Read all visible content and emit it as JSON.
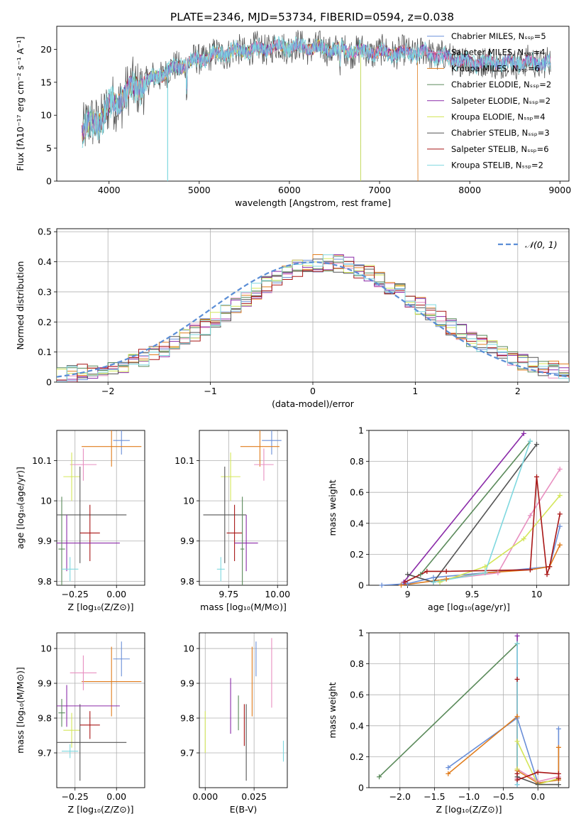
{
  "title": "PLATE=2346, MJD=53734, FIBERID=0594, z=0.038",
  "colors": {
    "chabrier_miles": "#6a8fd8",
    "salpeter_miles": "#e88fc0",
    "kroupa_miles": "#e07c1c",
    "chabrier_elodie": "#5a8a5a",
    "salpeter_elodie": "#8a2aa8",
    "kroupa_elodie": "#d4e65a",
    "chabrier_stelib": "#555555",
    "salpeter_stelib": "#a81616",
    "kroupa_stelib": "#7fd8df",
    "normal": "#5b8ed6"
  },
  "chart_data": [
    {
      "type": "line",
      "id": "spectrum",
      "xlabel": "wavelength [Angstrom, rest frame]",
      "ylabel": "Flux [fλ10⁻¹⁷ erg cm⁻² s⁻¹ A⁻¹]",
      "xlim": [
        3420,
        9100
      ],
      "ylim": [
        0,
        23.5
      ],
      "xticks": [
        4000,
        5000,
        6000,
        7000,
        8000,
        9000
      ],
      "yticks": [
        0,
        5,
        10,
        15,
        20
      ],
      "grid": false,
      "legend_position": "top-right",
      "continuum": [
        [
          3700,
          7.5
        ],
        [
          3900,
          9.5
        ],
        [
          4000,
          11
        ],
        [
          4200,
          13.5
        ],
        [
          4400,
          15
        ],
        [
          4700,
          17
        ],
        [
          5000,
          18.5
        ],
        [
          5300,
          19.5
        ],
        [
          5600,
          20
        ],
        [
          6000,
          20.5
        ],
        [
          6500,
          20
        ],
        [
          7000,
          19.5
        ],
        [
          7500,
          19.5
        ],
        [
          8000,
          18
        ],
        [
          8500,
          18
        ],
        [
          8900,
          18
        ]
      ],
      "series": [
        {
          "name": "Chabrier MILES, Nₛₛₚ=5",
          "color_key": "chabrier_miles"
        },
        {
          "name": "Salpeter MILES, Nₛₛₚ=4",
          "color_key": "salpeter_miles"
        },
        {
          "name": "Kroupa MILES, Nₛₛₚ=6",
          "color_key": "kroupa_miles"
        },
        {
          "name": "Chabrier ELODIE, Nₛₛₚ=2",
          "color_key": "chabrier_elodie"
        },
        {
          "name": "Salpeter ELODIE, Nₛₛₚ=2",
          "color_key": "salpeter_elodie"
        },
        {
          "name": "Kroupa ELODIE, Nₛₛₚ=4",
          "color_key": "kroupa_elodie"
        },
        {
          "name": "Chabrier STELIB, Nₛₛₚ=3",
          "color_key": "chabrier_stelib"
        },
        {
          "name": "Salpeter STELIB, Nₛₛₚ=6",
          "color_key": "salpeter_stelib"
        },
        {
          "name": "Kroupa STELIB, Nₛₛₚ=2",
          "color_key": "kroupa_stelib"
        }
      ]
    },
    {
      "type": "histogram",
      "id": "residuals",
      "xlabel": "(data-model)/error",
      "ylabel": "Normed distribution",
      "xlim": [
        -2.5,
        2.5
      ],
      "ylim": [
        0,
        0.51
      ],
      "xticks": [
        -2,
        -1,
        0,
        1,
        2
      ],
      "yticks": [
        0,
        0.1,
        0.2,
        0.3,
        0.4,
        0.5
      ],
      "grid": true,
      "legend": "𝒩(0, 1)",
      "legend_position": "top-right",
      "bin_width": 0.1,
      "profile": [
        0.02,
        0.025,
        0.03,
        0.035,
        0.04,
        0.048,
        0.057,
        0.068,
        0.08,
        0.094,
        0.11,
        0.127,
        0.145,
        0.165,
        0.186,
        0.208,
        0.231,
        0.255,
        0.278,
        0.301,
        0.323,
        0.343,
        0.361,
        0.376,
        0.387,
        0.395,
        0.398,
        0.395,
        0.387,
        0.376,
        0.361,
        0.343,
        0.323,
        0.301,
        0.278,
        0.255,
        0.231,
        0.208,
        0.186,
        0.165,
        0.145,
        0.127,
        0.11,
        0.094,
        0.08,
        0.068,
        0.057,
        0.048,
        0.04,
        0.032
      ]
    },
    {
      "type": "errorbar",
      "id": "age_vs_Z",
      "xlabel": "Z [log₁₀(Z/Z⊙)]",
      "ylabel": "age  [log₁₀(age/yr)]",
      "xlim": [
        -0.36,
        0.17
      ],
      "ylim": [
        9.79,
        10.175
      ],
      "xticks": [
        -0.25,
        0.0
      ],
      "xticklabels": [
        "−0.25",
        "0.00"
      ],
      "yticks": [
        9.8,
        9.9,
        10.0,
        10.1
      ],
      "points": [
        {
          "c": "chabrier_miles",
          "x": 0.03,
          "y": 10.15,
          "ex": 0.05,
          "ey": 0.035
        },
        {
          "c": "kroupa_miles",
          "x": -0.03,
          "y": 10.135,
          "ex": 0.18,
          "ey": 0.05
        },
        {
          "c": "salpeter_miles",
          "x": -0.2,
          "y": 10.09,
          "ex": 0.08,
          "ey": 0.04
        },
        {
          "c": "kroupa_elodie",
          "x": -0.27,
          "y": 10.06,
          "ex": 0.05,
          "ey": 0.06
        },
        {
          "c": "chabrier_stelib",
          "x": -0.22,
          "y": 9.965,
          "ex": 0.28,
          "ey": 0.12
        },
        {
          "c": "salpeter_stelib",
          "x": -0.16,
          "y": 9.92,
          "ex": 0.06,
          "ey": 0.07
        },
        {
          "c": "salpeter_elodie",
          "x": -0.3,
          "y": 9.895,
          "ex": 0.32,
          "ey": 0.07
        },
        {
          "c": "chabrier_elodie",
          "x": -0.33,
          "y": 9.88,
          "ex": 0.02,
          "ey": 0.13
        },
        {
          "c": "kroupa_stelib",
          "x": -0.28,
          "y": 9.83,
          "ex": 0.05,
          "ey": 0.03
        }
      ]
    },
    {
      "type": "errorbar",
      "id": "age_vs_mass",
      "xlabel": "mass [log₁₀(M/M⊙)]",
      "ylabel": "",
      "xlim": [
        9.6,
        10.05
      ],
      "ylim": [
        9.79,
        10.175
      ],
      "xticks": [
        9.75,
        10.0
      ],
      "xticklabels": [
        "9.75",
        "10.00"
      ],
      "yticks": [
        9.8,
        9.9,
        10.0,
        10.1
      ],
      "points": [
        {
          "c": "chabrier_miles",
          "x": 9.97,
          "y": 10.15,
          "ex": 0.05,
          "ey": 0.035
        },
        {
          "c": "kroupa_miles",
          "x": 9.91,
          "y": 10.135,
          "ex": 0.1,
          "ey": 0.05
        },
        {
          "c": "salpeter_miles",
          "x": 9.93,
          "y": 10.09,
          "ex": 0.05,
          "ey": 0.04
        },
        {
          "c": "kroupa_elodie",
          "x": 9.76,
          "y": 10.06,
          "ex": 0.05,
          "ey": 0.06
        },
        {
          "c": "chabrier_stelib",
          "x": 9.73,
          "y": 9.965,
          "ex": 0.11,
          "ey": 0.12
        },
        {
          "c": "salpeter_stelib",
          "x": 9.78,
          "y": 9.92,
          "ex": 0.04,
          "ey": 0.07
        },
        {
          "c": "salpeter_elodie",
          "x": 9.84,
          "y": 9.895,
          "ex": 0.06,
          "ey": 0.07
        },
        {
          "c": "chabrier_elodie",
          "x": 9.82,
          "y": 9.88,
          "ex": 0.01,
          "ey": 0.13
        },
        {
          "c": "kroupa_stelib",
          "x": 9.71,
          "y": 9.83,
          "ex": 0.02,
          "ey": 0.03
        }
      ]
    },
    {
      "type": "line",
      "id": "massweight_vs_age",
      "xlabel": "age  [log₁₀(age/yr)]",
      "ylabel": "mass weight",
      "xlim": [
        8.7,
        10.25
      ],
      "ylim": [
        0,
        1.0
      ],
      "xticks": [
        9.0,
        9.5,
        10.0
      ],
      "yticks": [
        0,
        0.2,
        0.4,
        0.6,
        0.8,
        1.0
      ],
      "series": [
        {
          "c": "chabrier_miles",
          "x": [
            8.8,
            9.0,
            9.2,
            9.6,
            10.1,
            10.18
          ],
          "y": [
            0.0,
            0.01,
            0.05,
            0.08,
            0.12,
            0.38
          ]
        },
        {
          "c": "salpeter_miles",
          "x": [
            9.3,
            9.7,
            9.95,
            10.18
          ],
          "y": [
            0.04,
            0.08,
            0.45,
            0.75
          ]
        },
        {
          "c": "kroupa_miles",
          "x": [
            8.95,
            9.3,
            9.6,
            9.95,
            10.1,
            10.18
          ],
          "y": [
            0.0,
            0.04,
            0.08,
            0.1,
            0.12,
            0.26
          ]
        },
        {
          "c": "chabrier_elodie",
          "x": [
            9.1,
            9.95
          ],
          "y": [
            0.07,
            0.93
          ]
        },
        {
          "c": "salpeter_elodie",
          "x": [
            8.97,
            9.9
          ],
          "y": [
            0.02,
            0.98
          ]
        },
        {
          "c": "kroupa_elodie",
          "x": [
            9.25,
            9.6,
            9.9,
            10.18
          ],
          "y": [
            0.02,
            0.12,
            0.3,
            0.58
          ]
        },
        {
          "c": "chabrier_stelib",
          "x": [
            9.0,
            9.2,
            10.0
          ],
          "y": [
            0.07,
            0.02,
            0.91
          ]
        },
        {
          "c": "salpeter_stelib",
          "x": [
            8.98,
            9.15,
            9.3,
            9.95,
            10.0,
            10.08,
            10.1,
            10.18
          ],
          "y": [
            0.02,
            0.09,
            0.09,
            0.1,
            0.7,
            0.07,
            0.12,
            0.46
          ]
        },
        {
          "c": "kroupa_stelib",
          "x": [
            9.2,
            9.6,
            9.95
          ],
          "y": [
            0.02,
            0.08,
            0.93
          ]
        }
      ]
    },
    {
      "type": "errorbar",
      "id": "mass_vs_Z",
      "xlabel": "Z [log₁₀(Z/Z⊙)]",
      "ylabel": "mass [log₁₀(M/M⊙)]",
      "xlim": [
        -0.36,
        0.17
      ],
      "ylim": [
        9.6,
        10.045
      ],
      "xticks": [
        -0.25,
        0.0
      ],
      "xticklabels": [
        "−0.25",
        "0.00"
      ],
      "yticks": [
        9.7,
        9.8,
        9.9,
        10.0
      ],
      "points": [
        {
          "c": "chabrier_miles",
          "x": 0.03,
          "y": 9.97,
          "ex": 0.05,
          "ey": 0.05
        },
        {
          "c": "kroupa_miles",
          "x": -0.03,
          "y": 9.905,
          "ex": 0.18,
          "ey": 0.1
        },
        {
          "c": "salpeter_miles",
          "x": -0.2,
          "y": 9.93,
          "ex": 0.08,
          "ey": 0.05
        },
        {
          "c": "kroupa_elodie",
          "x": -0.27,
          "y": 9.765,
          "ex": 0.05,
          "ey": 0.05
        },
        {
          "c": "chabrier_stelib",
          "x": -0.22,
          "y": 9.73,
          "ex": 0.28,
          "ey": 0.11
        },
        {
          "c": "salpeter_stelib",
          "x": -0.16,
          "y": 9.78,
          "ex": 0.06,
          "ey": 0.04
        },
        {
          "c": "salpeter_elodie",
          "x": -0.3,
          "y": 9.835,
          "ex": 0.32,
          "ey": 0.06
        },
        {
          "c": "chabrier_elodie",
          "x": -0.33,
          "y": 9.815,
          "ex": 0.02,
          "ey": 0.04
        },
        {
          "c": "kroupa_stelib",
          "x": -0.28,
          "y": 9.705,
          "ex": 0.05,
          "ey": 0.02
        }
      ]
    },
    {
      "type": "errorbar",
      "id": "mass_vs_ebv",
      "xlabel": "E(B-V)",
      "ylabel": "",
      "xlim": [
        -0.003,
        0.042
      ],
      "ylim": [
        9.6,
        10.045
      ],
      "xticks": [
        0.0,
        0.025
      ],
      "xticklabels": [
        "0.000",
        "0.025"
      ],
      "yticks": [
        9.7,
        9.8,
        9.9,
        10.0
      ],
      "points": [
        {
          "c": "chabrier_miles",
          "x": 0.026,
          "y": 9.97,
          "ex": 0,
          "ey": 0.05
        },
        {
          "c": "kroupa_miles",
          "x": 0.024,
          "y": 9.905,
          "ex": 0,
          "ey": 0.1
        },
        {
          "c": "salpeter_miles",
          "x": 0.034,
          "y": 9.93,
          "ex": 0,
          "ey": 0.1
        },
        {
          "c": "kroupa_elodie",
          "x": 0.0,
          "y": 9.76,
          "ex": 0,
          "ey": 0.06
        },
        {
          "c": "chabrier_stelib",
          "x": 0.021,
          "y": 9.73,
          "ex": 0,
          "ey": 0.11
        },
        {
          "c": "salpeter_stelib",
          "x": 0.02,
          "y": 9.78,
          "ex": 0,
          "ey": 0.06
        },
        {
          "c": "salpeter_elodie",
          "x": 0.013,
          "y": 9.835,
          "ex": 0,
          "ey": 0.08
        },
        {
          "c": "chabrier_elodie",
          "x": 0.017,
          "y": 9.815,
          "ex": 0,
          "ey": 0.05
        },
        {
          "c": "kroupa_stelib",
          "x": 0.04,
          "y": 9.705,
          "ex": 0,
          "ey": 0.03
        }
      ]
    },
    {
      "type": "line",
      "id": "massweight_vs_Z",
      "xlabel": "Z [log₁₀(Z/Z⊙)]",
      "ylabel": "mass weight",
      "xlim": [
        -2.45,
        0.45
      ],
      "ylim": [
        0,
        1.0
      ],
      "xticks": [
        -2.0,
        -1.5,
        -1.0,
        -0.5,
        0.0
      ],
      "xticklabels": [
        "−2.0",
        "−1.5",
        "−1.0",
        "−0.5",
        "0.0"
      ],
      "yticks": [
        0,
        0.2,
        0.4,
        0.6,
        0.8,
        1.0
      ],
      "series": [
        {
          "c": "chabrier_miles",
          "x": [
            -1.3,
            -0.3,
            0.0,
            0.3,
            0.3
          ],
          "y": [
            0.13,
            0.45,
            0.03,
            0.05,
            0.38
          ]
        },
        {
          "c": "salpeter_miles",
          "x": [
            -0.3,
            -0.3,
            0.0,
            0.3
          ],
          "y": [
            0.06,
            0.12,
            0.04,
            0.07
          ]
        },
        {
          "c": "kroupa_miles",
          "x": [
            -1.3,
            -0.3,
            -0.3,
            0.0,
            0.3,
            0.3
          ],
          "y": [
            0.09,
            0.46,
            0.11,
            0.03,
            0.05,
            0.26
          ]
        },
        {
          "c": "chabrier_elodie",
          "x": [
            -2.3,
            -0.3
          ],
          "y": [
            0.07,
            0.93
          ]
        },
        {
          "c": "salpeter_elodie",
          "x": [
            -0.3,
            -0.3
          ],
          "y": [
            0.02,
            0.98
          ]
        },
        {
          "c": "kroupa_elodie",
          "x": [
            -0.3,
            -0.3,
            0.0,
            0.3
          ],
          "y": [
            0.12,
            0.3,
            0.02,
            0.06
          ]
        },
        {
          "c": "chabrier_stelib",
          "x": [
            -0.3,
            0.0,
            0.3
          ],
          "y": [
            0.07,
            0.02,
            0.02
          ]
        },
        {
          "c": "salpeter_stelib",
          "x": [
            -0.3,
            -0.3,
            -0.3,
            0.0,
            0.3,
            0.3
          ],
          "y": [
            0.09,
            0.7,
            0.05,
            0.1,
            0.09,
            0.06
          ]
        },
        {
          "c": "kroupa_stelib",
          "x": [
            -0.3,
            -0.3
          ],
          "y": [
            0.02,
            0.93
          ]
        }
      ]
    }
  ]
}
